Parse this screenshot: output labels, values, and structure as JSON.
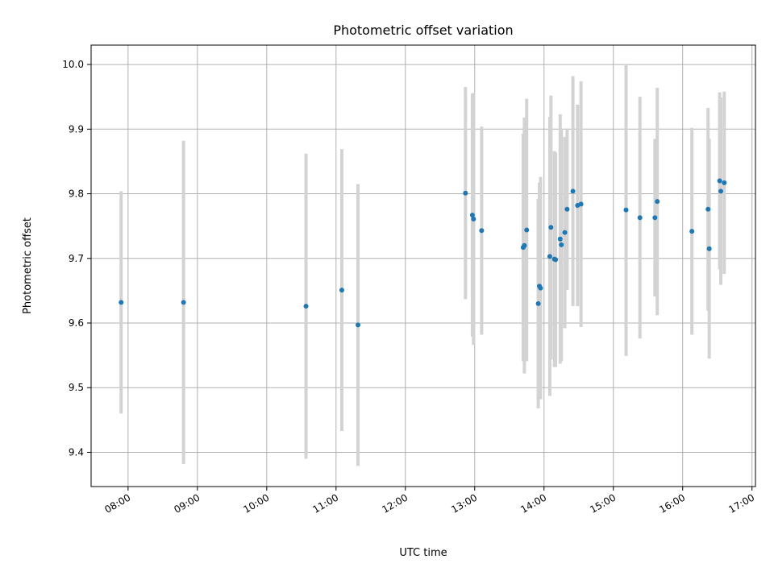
{
  "chart_data": {
    "type": "scatter",
    "title": "Photometric offset variation",
    "xlabel": "UTC time",
    "ylabel": "Photometric offset",
    "x_axis_kind": "time",
    "xlim": [
      "07:28",
      "17:03"
    ],
    "ylim": [
      9.347,
      10.03
    ],
    "grid": true,
    "x_ticks": [
      "08:00",
      "09:00",
      "10:00",
      "11:00",
      "12:00",
      "13:00",
      "14:00",
      "15:00",
      "16:00",
      "17:00"
    ],
    "y_ticks": [
      "9.4",
      "9.5",
      "9.6",
      "9.7",
      "9.8",
      "9.9",
      "10.0"
    ],
    "point_color": "#1f77b4",
    "errorbar_color": "#d3d3d3",
    "points": [
      {
        "x": "07:54",
        "y": 9.632,
        "yerr": 0.172
      },
      {
        "x": "08:48",
        "y": 9.632,
        "yerr": 0.25
      },
      {
        "x": "10:34",
        "y": 9.626,
        "yerr": 0.236
      },
      {
        "x": "11:05",
        "y": 9.651,
        "yerr": 0.218
      },
      {
        "x": "11:19",
        "y": 9.597,
        "yerr": 0.218
      },
      {
        "x": "12:52",
        "y": 9.801,
        "yerr": 0.164
      },
      {
        "x": "12:58",
        "y": 9.767,
        "yerr": 0.188
      },
      {
        "x": "12:59",
        "y": 9.761,
        "yerr": 0.195
      },
      {
        "x": "13:06",
        "y": 9.743,
        "yerr": 0.161
      },
      {
        "x": "13:42",
        "y": 9.717,
        "yerr": 0.176
      },
      {
        "x": "13:43",
        "y": 9.72,
        "yerr": 0.198
      },
      {
        "x": "13:45",
        "y": 9.744,
        "yerr": 0.203
      },
      {
        "x": "13:55",
        "y": 9.63,
        "yerr": 0.162
      },
      {
        "x": "13:56",
        "y": 9.657,
        "yerr": 0.16
      },
      {
        "x": "13:57",
        "y": 9.654,
        "yerr": 0.172
      },
      {
        "x": "14:05",
        "y": 9.703,
        "yerr": 0.216
      },
      {
        "x": "14:06",
        "y": 9.748,
        "yerr": 0.204
      },
      {
        "x": "14:09",
        "y": 9.699,
        "yerr": 0.167
      },
      {
        "x": "14:10",
        "y": 9.698,
        "yerr": 0.166
      },
      {
        "x": "14:14",
        "y": 9.73,
        "yerr": 0.193
      },
      {
        "x": "14:15",
        "y": 9.721,
        "yerr": 0.18
      },
      {
        "x": "14:18",
        "y": 9.74,
        "yerr": 0.148
      },
      {
        "x": "14:20",
        "y": 9.776,
        "yerr": 0.125
      },
      {
        "x": "14:25",
        "y": 9.804,
        "yerr": 0.178
      },
      {
        "x": "14:29",
        "y": 9.782,
        "yerr": 0.156
      },
      {
        "x": "14:32",
        "y": 9.784,
        "yerr": 0.19
      },
      {
        "x": "15:11",
        "y": 9.775,
        "yerr": 0.226
      },
      {
        "x": "15:23",
        "y": 9.763,
        "yerr": 0.187
      },
      {
        "x": "15:36",
        "y": 9.763,
        "yerr": 0.122
      },
      {
        "x": "15:38",
        "y": 9.788,
        "yerr": 0.176
      },
      {
        "x": "16:08",
        "y": 9.742,
        "yerr": 0.16
      },
      {
        "x": "16:22",
        "y": 9.776,
        "yerr": 0.157
      },
      {
        "x": "16:23",
        "y": 9.715,
        "yerr": 0.17
      },
      {
        "x": "16:32",
        "y": 9.82,
        "yerr": 0.137
      },
      {
        "x": "16:33",
        "y": 9.804,
        "yerr": 0.145
      },
      {
        "x": "16:36",
        "y": 9.817,
        "yerr": 0.141
      }
    ]
  }
}
